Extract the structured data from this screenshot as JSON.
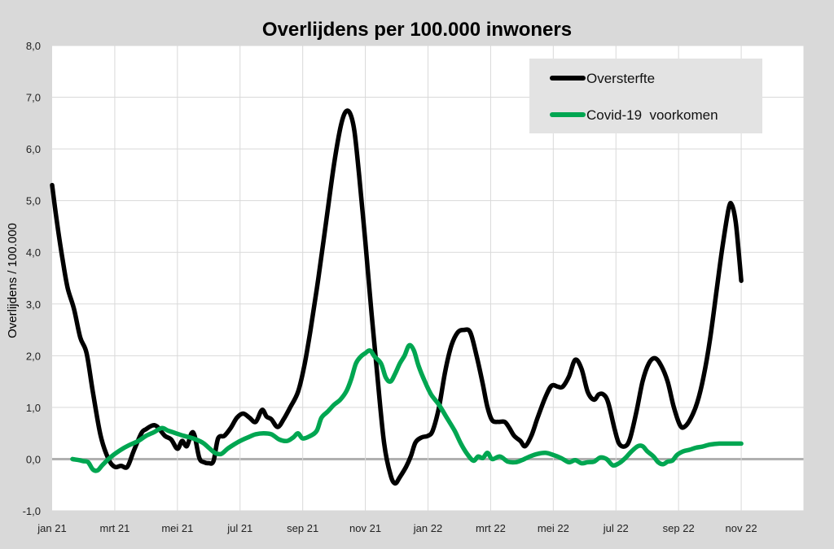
{
  "chart_data": {
    "type": "line",
    "title": "Overlijdens per 100.000 inwoners",
    "xlabel": "",
    "ylabel": "Overlijdens / 100.000",
    "ylim": [
      -1.0,
      8.0
    ],
    "y_ticks": [
      "-1,0",
      "0,0",
      "1,0",
      "2,0",
      "3,0",
      "4,0",
      "5,0",
      "6,0",
      "7,0",
      "8,0"
    ],
    "x_ticks": [
      "jan 21",
      "mrt 21",
      "mei 21",
      "jul 21",
      "sep 21",
      "nov 21",
      "jan 22",
      "mrt 22",
      "mei 22",
      "jul 22",
      "sep 22",
      "nov 22"
    ],
    "x_range": [
      0,
      24
    ],
    "grid": true,
    "legend_position": "top-right",
    "legend_background": "#e3e3e3",
    "series": [
      {
        "name": "Oversterfte",
        "color": "#000000",
        "points": [
          [
            0.0,
            5.3
          ],
          [
            0.15,
            4.6
          ],
          [
            0.35,
            3.8
          ],
          [
            0.5,
            3.3
          ],
          [
            0.7,
            2.9
          ],
          [
            0.9,
            2.35
          ],
          [
            1.1,
            2.05
          ],
          [
            1.3,
            1.3
          ],
          [
            1.55,
            0.45
          ],
          [
            1.8,
            0.0
          ],
          [
            2.0,
            -0.15
          ],
          [
            2.2,
            -0.13
          ],
          [
            2.4,
            -0.15
          ],
          [
            2.6,
            0.15
          ],
          [
            2.85,
            0.5
          ],
          [
            3.0,
            0.58
          ],
          [
            3.2,
            0.65
          ],
          [
            3.35,
            0.63
          ],
          [
            3.6,
            0.45
          ],
          [
            3.8,
            0.38
          ],
          [
            4.0,
            0.2
          ],
          [
            4.15,
            0.35
          ],
          [
            4.3,
            0.25
          ],
          [
            4.45,
            0.5
          ],
          [
            4.55,
            0.45
          ],
          [
            4.7,
            0.02
          ],
          [
            4.85,
            -0.06
          ],
          [
            5.0,
            -0.08
          ],
          [
            5.15,
            -0.04
          ],
          [
            5.3,
            0.4
          ],
          [
            5.5,
            0.45
          ],
          [
            5.7,
            0.6
          ],
          [
            5.9,
            0.8
          ],
          [
            6.1,
            0.88
          ],
          [
            6.3,
            0.8
          ],
          [
            6.5,
            0.72
          ],
          [
            6.7,
            0.95
          ],
          [
            6.85,
            0.82
          ],
          [
            7.0,
            0.77
          ],
          [
            7.2,
            0.62
          ],
          [
            7.4,
            0.78
          ],
          [
            7.6,
            1.0
          ],
          [
            7.85,
            1.3
          ],
          [
            8.05,
            1.8
          ],
          [
            8.25,
            2.5
          ],
          [
            8.5,
            3.5
          ],
          [
            8.75,
            4.6
          ],
          [
            9.0,
            5.7
          ],
          [
            9.2,
            6.4
          ],
          [
            9.35,
            6.7
          ],
          [
            9.5,
            6.7
          ],
          [
            9.65,
            6.35
          ],
          [
            9.8,
            5.5
          ],
          [
            10.0,
            4.2
          ],
          [
            10.2,
            2.8
          ],
          [
            10.4,
            1.5
          ],
          [
            10.6,
            0.3
          ],
          [
            10.8,
            -0.3
          ],
          [
            10.95,
            -0.47
          ],
          [
            11.1,
            -0.35
          ],
          [
            11.3,
            -0.15
          ],
          [
            11.45,
            0.05
          ],
          [
            11.6,
            0.32
          ],
          [
            11.8,
            0.42
          ],
          [
            12.0,
            0.45
          ],
          [
            12.15,
            0.55
          ],
          [
            12.35,
            1.0
          ],
          [
            12.55,
            1.7
          ],
          [
            12.75,
            2.2
          ],
          [
            12.95,
            2.45
          ],
          [
            13.15,
            2.5
          ],
          [
            13.35,
            2.45
          ],
          [
            13.55,
            2.0
          ],
          [
            13.75,
            1.45
          ],
          [
            13.9,
            1.0
          ],
          [
            14.05,
            0.75
          ],
          [
            14.25,
            0.72
          ],
          [
            14.45,
            0.72
          ],
          [
            14.6,
            0.6
          ],
          [
            14.75,
            0.45
          ],
          [
            14.95,
            0.35
          ],
          [
            15.1,
            0.25
          ],
          [
            15.3,
            0.45
          ],
          [
            15.5,
            0.8
          ],
          [
            15.75,
            1.2
          ],
          [
            15.95,
            1.42
          ],
          [
            16.15,
            1.4
          ],
          [
            16.3,
            1.4
          ],
          [
            16.5,
            1.6
          ],
          [
            16.7,
            1.92
          ],
          [
            16.9,
            1.75
          ],
          [
            17.1,
            1.3
          ],
          [
            17.3,
            1.15
          ],
          [
            17.45,
            1.25
          ],
          [
            17.6,
            1.25
          ],
          [
            17.75,
            1.1
          ],
          [
            17.95,
            0.6
          ],
          [
            18.1,
            0.3
          ],
          [
            18.3,
            0.25
          ],
          [
            18.45,
            0.4
          ],
          [
            18.65,
            0.9
          ],
          [
            18.85,
            1.5
          ],
          [
            19.05,
            1.85
          ],
          [
            19.25,
            1.95
          ],
          [
            19.45,
            1.8
          ],
          [
            19.65,
            1.5
          ],
          [
            19.85,
            1.0
          ],
          [
            20.05,
            0.65
          ],
          [
            20.2,
            0.63
          ],
          [
            20.4,
            0.8
          ],
          [
            20.6,
            1.1
          ],
          [
            20.8,
            1.6
          ],
          [
            21.0,
            2.3
          ],
          [
            21.2,
            3.2
          ],
          [
            21.4,
            4.1
          ],
          [
            21.6,
            4.85
          ],
          [
            21.7,
            4.92
          ],
          [
            21.82,
            4.6
          ],
          [
            21.92,
            4.0
          ],
          [
            22.0,
            3.45
          ]
        ]
      },
      {
        "name": "Covid-19  voorkomen",
        "color": "#00a651",
        "points": [
          [
            0.65,
            0.0
          ],
          [
            0.85,
            -0.02
          ],
          [
            1.0,
            -0.04
          ],
          [
            1.15,
            -0.06
          ],
          [
            1.3,
            -0.2
          ],
          [
            1.45,
            -0.22
          ],
          [
            1.6,
            -0.12
          ],
          [
            1.8,
            0.0
          ],
          [
            2.0,
            0.1
          ],
          [
            2.25,
            0.2
          ],
          [
            2.5,
            0.28
          ],
          [
            2.75,
            0.35
          ],
          [
            3.0,
            0.45
          ],
          [
            3.25,
            0.52
          ],
          [
            3.5,
            0.6
          ],
          [
            3.7,
            0.55
          ],
          [
            3.95,
            0.5
          ],
          [
            4.2,
            0.45
          ],
          [
            4.5,
            0.4
          ],
          [
            4.8,
            0.32
          ],
          [
            5.0,
            0.22
          ],
          [
            5.2,
            0.12
          ],
          [
            5.4,
            0.1
          ],
          [
            5.6,
            0.2
          ],
          [
            5.8,
            0.28
          ],
          [
            6.0,
            0.35
          ],
          [
            6.25,
            0.42
          ],
          [
            6.5,
            0.48
          ],
          [
            6.75,
            0.5
          ],
          [
            7.0,
            0.48
          ],
          [
            7.25,
            0.38
          ],
          [
            7.5,
            0.35
          ],
          [
            7.7,
            0.42
          ],
          [
            7.85,
            0.5
          ],
          [
            8.0,
            0.4
          ],
          [
            8.25,
            0.45
          ],
          [
            8.45,
            0.55
          ],
          [
            8.6,
            0.8
          ],
          [
            8.8,
            0.92
          ],
          [
            9.0,
            1.05
          ],
          [
            9.2,
            1.15
          ],
          [
            9.4,
            1.32
          ],
          [
            9.55,
            1.55
          ],
          [
            9.7,
            1.85
          ],
          [
            9.85,
            1.98
          ],
          [
            10.0,
            2.05
          ],
          [
            10.15,
            2.1
          ],
          [
            10.3,
            1.98
          ],
          [
            10.5,
            1.85
          ],
          [
            10.65,
            1.58
          ],
          [
            10.8,
            1.5
          ],
          [
            10.95,
            1.65
          ],
          [
            11.1,
            1.85
          ],
          [
            11.25,
            2.0
          ],
          [
            11.4,
            2.2
          ],
          [
            11.55,
            2.1
          ],
          [
            11.7,
            1.8
          ],
          [
            11.9,
            1.5
          ],
          [
            12.1,
            1.25
          ],
          [
            12.35,
            1.05
          ],
          [
            12.6,
            0.8
          ],
          [
            12.85,
            0.55
          ],
          [
            13.05,
            0.3
          ],
          [
            13.25,
            0.1
          ],
          [
            13.45,
            -0.03
          ],
          [
            13.6,
            0.05
          ],
          [
            13.75,
            0.02
          ],
          [
            13.9,
            0.12
          ],
          [
            14.05,
            0.0
          ],
          [
            14.3,
            0.05
          ],
          [
            14.55,
            -0.05
          ],
          [
            14.8,
            -0.06
          ],
          [
            15.0,
            -0.02
          ],
          [
            15.25,
            0.05
          ],
          [
            15.5,
            0.1
          ],
          [
            15.75,
            0.12
          ],
          [
            16.0,
            0.08
          ],
          [
            16.25,
            0.02
          ],
          [
            16.5,
            -0.06
          ],
          [
            16.7,
            -0.02
          ],
          [
            16.9,
            -0.08
          ],
          [
            17.1,
            -0.06
          ],
          [
            17.3,
            -0.05
          ],
          [
            17.5,
            0.03
          ],
          [
            17.7,
            0.0
          ],
          [
            17.9,
            -0.12
          ],
          [
            18.1,
            -0.08
          ],
          [
            18.3,
            0.02
          ],
          [
            18.5,
            0.15
          ],
          [
            18.7,
            0.25
          ],
          [
            18.85,
            0.25
          ],
          [
            19.0,
            0.15
          ],
          [
            19.2,
            0.05
          ],
          [
            19.35,
            -0.06
          ],
          [
            19.5,
            -0.1
          ],
          [
            19.65,
            -0.05
          ],
          [
            19.8,
            -0.03
          ],
          [
            19.95,
            0.08
          ],
          [
            20.15,
            0.15
          ],
          [
            20.35,
            0.18
          ],
          [
            20.55,
            0.22
          ],
          [
            20.75,
            0.24
          ],
          [
            21.0,
            0.28
          ],
          [
            21.3,
            0.3
          ],
          [
            21.6,
            0.3
          ],
          [
            22.0,
            0.3
          ]
        ]
      }
    ]
  }
}
